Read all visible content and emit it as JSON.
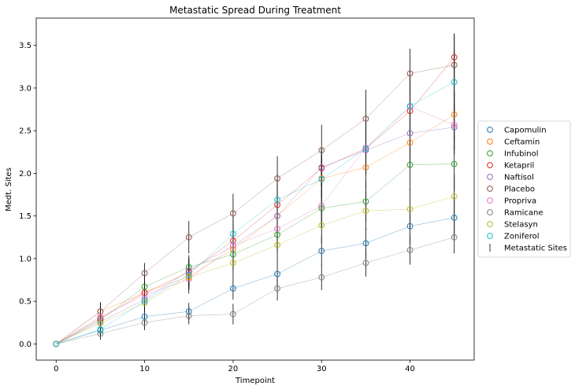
{
  "chart_data": {
    "type": "scatter",
    "title": "Metastatic Spread During Treatment",
    "xlabel": "Timepoint",
    "ylabel": "Medt. Sites",
    "xlim": [
      -2.25,
      47.25
    ],
    "ylim": [
      -0.19,
      3.82
    ],
    "xticks": [
      0,
      10,
      20,
      30,
      40
    ],
    "yticks": [
      0.0,
      0.5,
      1.0,
      1.5,
      2.0,
      2.5,
      3.0,
      3.5
    ],
    "x": [
      0,
      5,
      10,
      15,
      20,
      25,
      30,
      35,
      40,
      45
    ],
    "grid": false,
    "legend_position": "center-right",
    "error_legend_label": "Metastatic Sites",
    "series": [
      {
        "name": "Capomulin",
        "color": "#1f77b4",
        "values": [
          0,
          0.16,
          0.32,
          0.38,
          0.65,
          0.82,
          1.09,
          1.18,
          1.38,
          1.48
        ],
        "err": [
          0,
          0.07,
          0.09,
          0.1,
          0.13,
          0.16,
          0.17,
          0.18,
          0.21,
          0.24
        ]
      },
      {
        "name": "Ceftamin",
        "color": "#ff7f0e",
        "values": [
          0,
          0.38,
          0.6,
          0.79,
          1.11,
          1.5,
          1.94,
          2.07,
          2.36,
          2.69
        ],
        "err": [
          0,
          0.11,
          0.13,
          0.16,
          0.19,
          0.21,
          0.23,
          0.24,
          0.26,
          0.28
        ]
      },
      {
        "name": "Infubinol",
        "color": "#2ca02c",
        "values": [
          0,
          0.28,
          0.67,
          0.9,
          1.05,
          1.28,
          1.59,
          1.67,
          2.1,
          2.11
        ],
        "err": [
          0,
          0.09,
          0.12,
          0.14,
          0.18,
          0.2,
          0.22,
          0.24,
          0.3,
          0.32
        ]
      },
      {
        "name": "Ketapril",
        "color": "#d62728",
        "values": [
          0,
          0.3,
          0.6,
          0.84,
          1.21,
          1.63,
          2.06,
          2.29,
          2.73,
          3.36
        ],
        "err": [
          0,
          0.1,
          0.14,
          0.16,
          0.18,
          0.2,
          0.22,
          0.25,
          0.27,
          0.28
        ]
      },
      {
        "name": "Naftisol",
        "color": "#9467bd",
        "values": [
          0,
          0.26,
          0.52,
          0.86,
          1.15,
          1.5,
          2.07,
          2.27,
          2.47,
          2.54
        ],
        "err": [
          0,
          0.09,
          0.12,
          0.15,
          0.18,
          0.21,
          0.23,
          0.25,
          0.26,
          0.27
        ]
      },
      {
        "name": "Placebo",
        "color": "#8c564b",
        "values": [
          0,
          0.38,
          0.83,
          1.25,
          1.53,
          1.94,
          2.27,
          2.64,
          3.17,
          3.27
        ],
        "err": [
          0,
          0.1,
          0.12,
          0.19,
          0.23,
          0.26,
          0.3,
          0.34,
          0.29,
          0.36
        ]
      },
      {
        "name": "Propriva",
        "color": "#e377c2",
        "values": [
          0,
          0.32,
          0.57,
          0.76,
          1.15,
          1.35,
          1.62,
          2.3,
          2.78,
          2.57
        ],
        "err": [
          0,
          0.1,
          0.13,
          0.17,
          0.2,
          0.24,
          0.26,
          0.3,
          0.33,
          0.35
        ]
      },
      {
        "name": "Ramicane",
        "color": "#7f7f7f",
        "values": [
          0,
          0.12,
          0.25,
          0.33,
          0.35,
          0.65,
          0.78,
          0.95,
          1.1,
          1.25
        ],
        "err": [
          0,
          0.07,
          0.09,
          0.1,
          0.12,
          0.14,
          0.15,
          0.16,
          0.17,
          0.19
        ]
      },
      {
        "name": "Stelasyn",
        "color": "#bcbd22",
        "values": [
          0,
          0.24,
          0.48,
          0.78,
          0.95,
          1.16,
          1.39,
          1.56,
          1.58,
          1.73
        ],
        "err": [
          0,
          0.09,
          0.11,
          0.14,
          0.17,
          0.19,
          0.21,
          0.23,
          0.24,
          0.26
        ]
      },
      {
        "name": "Zoniferol",
        "color": "#17becf",
        "values": [
          0,
          0.17,
          0.5,
          0.81,
          1.29,
          1.69,
          1.93,
          2.29,
          2.79,
          3.07
        ],
        "err": [
          0,
          0.08,
          0.12,
          0.16,
          0.2,
          0.24,
          0.28,
          0.31,
          0.34,
          0.37
        ]
      }
    ]
  }
}
